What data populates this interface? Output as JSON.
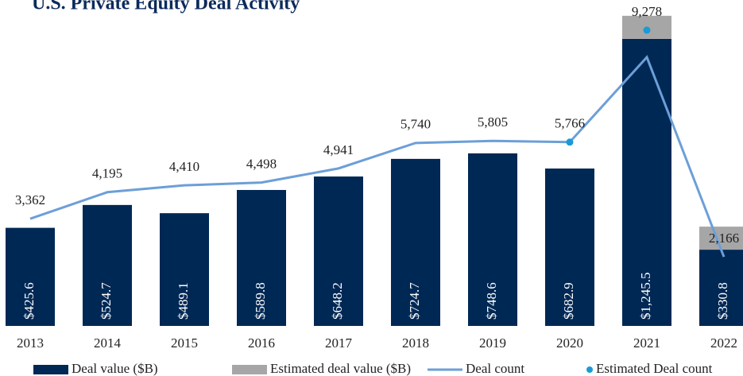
{
  "chart_data": {
    "type": "bar",
    "title": "U.S. Private Equity Deal Activity",
    "categories": [
      "2013",
      "2014",
      "2015",
      "2016",
      "2017",
      "2018",
      "2019",
      "2020",
      "2021",
      "2022"
    ],
    "ylim": [
      0,
      1414
    ],
    "y2lim": [
      0,
      10224
    ],
    "series": [
      {
        "name": "Deal value ($B)",
        "color": "#002855",
        "type": "bar",
        "values": [
          425.6,
          524.7,
          489.1,
          589.8,
          648.2,
          724.7,
          748.6,
          682.9,
          1245.5,
          330.8
        ],
        "value_labels": [
          "$425.6",
          "$524.7",
          "$489.1",
          "$589.8",
          "$648.2",
          "$724.7",
          "$748.6",
          "$682.9",
          "$1,245.5",
          "$330.8"
        ]
      },
      {
        "name": "Estimated deal value ($B)",
        "color": "#a6a6a6",
        "type": "bar",
        "values": [
          null,
          null,
          null,
          null,
          null,
          null,
          null,
          null,
          100,
          100
        ]
      },
      {
        "name": "Deal count",
        "color": "#6c9fd8",
        "type": "line",
        "axis": "y2",
        "values": [
          3362,
          4195,
          4410,
          4498,
          4941,
          5740,
          5805,
          5766,
          8430,
          2166
        ],
        "value_labels": [
          "3,362",
          "4,195",
          "4,410",
          "4,498",
          "4,941",
          "5,740",
          "5,805",
          "5,766",
          null,
          "2,166"
        ]
      },
      {
        "name": "Estimated Deal count",
        "color": "#1a9ad6",
        "type": "scatter",
        "axis": "y2",
        "values": [
          null,
          null,
          null,
          null,
          null,
          null,
          null,
          5766,
          9278,
          null
        ],
        "value_labels": [
          null,
          null,
          null,
          null,
          null,
          null,
          null,
          null,
          "9,278",
          null
        ]
      }
    ]
  }
}
